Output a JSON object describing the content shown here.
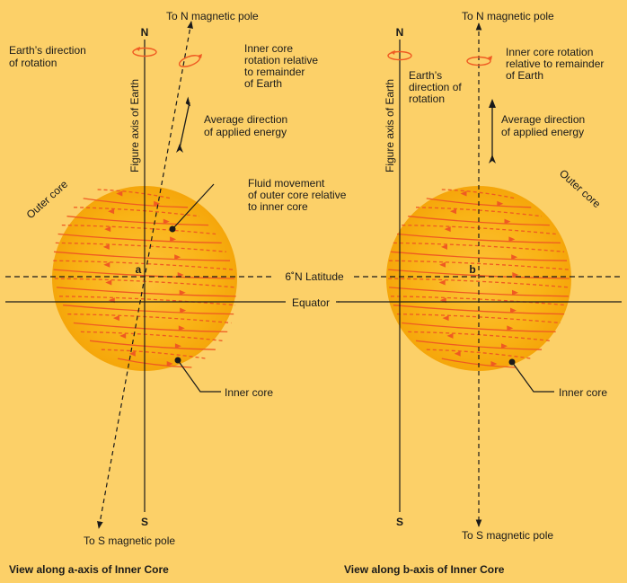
{
  "panels": [
    {
      "id": "a",
      "caption": "View along a-axis of Inner Core",
      "top_label": "To N magnetic pole",
      "bottom_label": "To S magnetic pole",
      "n_label": "N",
      "s_label": "S",
      "axis_label": "Figure axis of Earth",
      "center_label": "a",
      "earth_rotation_label": [
        "Earth’s direction",
        "of rotation"
      ],
      "core_rotation_label": [
        "Inner core",
        "rotation relative",
        "to remainder",
        "of Earth"
      ],
      "energy_label": [
        "Average direction",
        "of applied energy"
      ],
      "fluid_label": [
        "Fluid movement",
        "of outer core relative",
        "to inner core"
      ],
      "outer_core_label": "Outer core",
      "inner_core_label": "Inner core"
    },
    {
      "id": "b",
      "caption": "View along b-axis of Inner Core",
      "top_label": "To N magnetic pole",
      "bottom_label": "To S magnetic pole",
      "n_label": "N",
      "s_label": "S",
      "axis_label": "Figure axis of Earth",
      "center_label": "b",
      "earth_rotation_label": [
        "Earth’s",
        "direction of",
        "rotation"
      ],
      "core_rotation_label": [
        "Inner core rotation",
        "relative to remainder",
        "of Earth"
      ],
      "energy_label": [
        "Average direction",
        "of applied energy"
      ],
      "outer_core_label": "Outer core",
      "inner_core_label": "Inner core"
    }
  ],
  "shared": {
    "latitude_label": "6˚N Latitude",
    "equator_label": "Equator"
  },
  "colors": {
    "background": "#fcd068",
    "sphere": "#f9b316",
    "sphere_edge": "#f5a300",
    "helix": "#ef5a22",
    "line": "#1a1a1a"
  }
}
